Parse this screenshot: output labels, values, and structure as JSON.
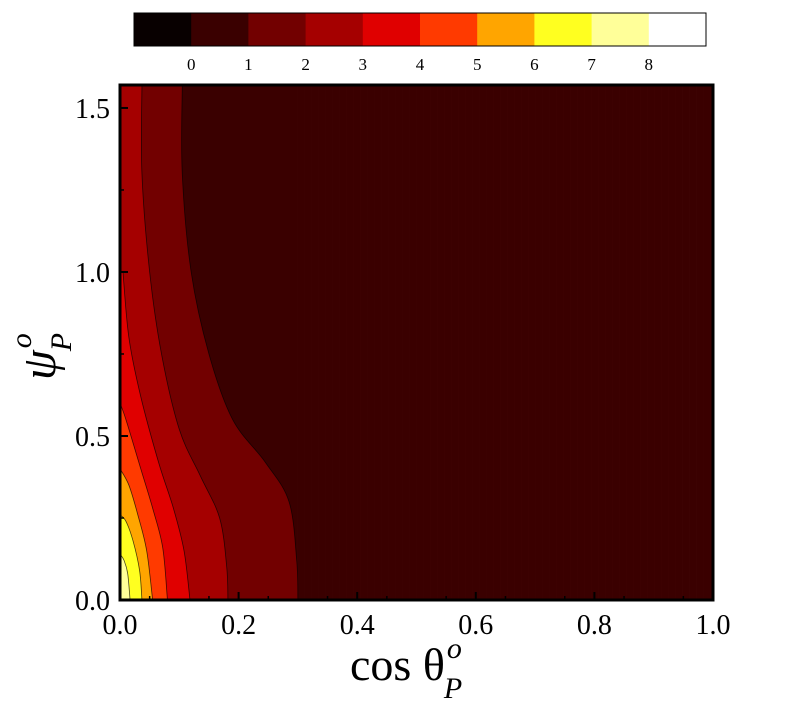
{
  "chart_data": {
    "type": "contour",
    "xlabel": "cos θ",
    "xlabel_superscript": "o",
    "xlabel_subscript": "P",
    "ylabel": "ψ",
    "ylabel_superscript": "o",
    "ylabel_subscript": "P",
    "xlim": [
      0.0,
      1.0
    ],
    "ylim": [
      0.0,
      1.57
    ],
    "x_ticks": [
      "0.0",
      "0.2",
      "0.4",
      "0.6",
      "0.8",
      "1.0"
    ],
    "x_tick_values": [
      0.0,
      0.2,
      0.4,
      0.6,
      0.8,
      1.0
    ],
    "y_ticks": [
      "0.0",
      "0.5",
      "1.0",
      "1.5"
    ],
    "y_tick_values": [
      0.0,
      0.5,
      1.0,
      1.5
    ],
    "grid": false,
    "colorbar": {
      "position": "top",
      "levels": [
        0,
        1,
        2,
        3,
        4,
        5,
        6,
        7,
        8
      ],
      "labels": [
        "0",
        "1",
        "2",
        "3",
        "4",
        "5",
        "6",
        "7",
        "8"
      ],
      "colors": [
        "#080000",
        "#3a0000",
        "#720000",
        "#a50000",
        "#e00000",
        "#ff3a00",
        "#ffa500",
        "#ffff20",
        "#ffff99",
        "#ffffff"
      ]
    },
    "contours": [
      {
        "level": 1,
        "points": [
          [
            0.105,
            1.57
          ],
          [
            0.105,
            1.3
          ],
          [
            0.12,
            1.0
          ],
          [
            0.15,
            0.75
          ],
          [
            0.19,
            0.55
          ],
          [
            0.245,
            0.42
          ],
          [
            0.285,
            0.3
          ],
          [
            0.298,
            0.12
          ],
          [
            0.3,
            0.0
          ]
        ]
      },
      {
        "level": 2,
        "points": [
          [
            0.037,
            1.57
          ],
          [
            0.037,
            1.3
          ],
          [
            0.05,
            1.0
          ],
          [
            0.07,
            0.75
          ],
          [
            0.1,
            0.52
          ],
          [
            0.135,
            0.38
          ],
          [
            0.168,
            0.25
          ],
          [
            0.18,
            0.1
          ],
          [
            0.182,
            0.0
          ]
        ]
      },
      {
        "level": 3,
        "points": [
          [
            0.005,
            1.0
          ],
          [
            0.015,
            0.8
          ],
          [
            0.035,
            0.62
          ],
          [
            0.065,
            0.42
          ],
          [
            0.09,
            0.28
          ],
          [
            0.108,
            0.15
          ],
          [
            0.118,
            0.0
          ]
        ]
      },
      {
        "level": 4,
        "points": [
          [
            0.0,
            0.6
          ],
          [
            0.01,
            0.55
          ],
          [
            0.035,
            0.4
          ],
          [
            0.055,
            0.28
          ],
          [
            0.072,
            0.16
          ],
          [
            0.08,
            0.0
          ]
        ]
      },
      {
        "level": 5,
        "points": [
          [
            0.0,
            0.4
          ],
          [
            0.015,
            0.35
          ],
          [
            0.03,
            0.26
          ],
          [
            0.045,
            0.15
          ],
          [
            0.055,
            0.0
          ]
        ]
      },
      {
        "level": 6,
        "points": [
          [
            0.0,
            0.26
          ],
          [
            0.01,
            0.24
          ],
          [
            0.022,
            0.18
          ],
          [
            0.033,
            0.09
          ],
          [
            0.037,
            0.0
          ]
        ]
      },
      {
        "level": 7,
        "points": [
          [
            0.0,
            0.14
          ],
          [
            0.007,
            0.12
          ],
          [
            0.013,
            0.08
          ],
          [
            0.017,
            0.0
          ]
        ]
      }
    ]
  }
}
